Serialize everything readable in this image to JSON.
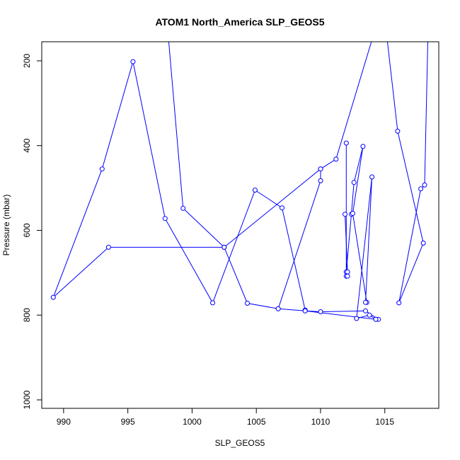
{
  "chart_data": {
    "type": "line",
    "title": "ATOM1 North_America SLP_GEOS5",
    "xlabel": "SLP_GEOS5",
    "ylabel": "Pressure (mbar)",
    "xlim": [
      988.3,
      1019.2
    ],
    "ylim": [
      1020,
      155
    ],
    "x_ticks": [
      990,
      995,
      1000,
      1005,
      1010,
      1015
    ],
    "y_ticks": [
      200,
      400,
      600,
      800,
      1000
    ],
    "colors": {
      "series": "#0000ff",
      "frame": "#000000"
    },
    "series": [
      {
        "points": [
          [
            998.0,
            90
          ],
          [
            999.3,
            548
          ],
          [
            1002.5,
            640
          ],
          [
            993.5,
            640
          ],
          [
            989.2,
            758
          ],
          [
            993.0,
            455
          ],
          [
            995.4,
            202
          ],
          [
            997.9,
            572
          ],
          [
            1001.6,
            771
          ],
          [
            1004.9,
            505
          ],
          [
            1007.0,
            547
          ],
          [
            1008.8,
            788
          ],
          [
            1008.8,
            790
          ],
          [
            1010.0,
            792
          ],
          [
            1013.5,
            790
          ],
          [
            1014.5,
            810
          ],
          [
            1014.3,
            810
          ],
          [
            1008.8,
            790
          ],
          [
            1006.7,
            785
          ],
          [
            1004.3,
            772
          ],
          [
            1002.5,
            640
          ],
          [
            1010.0,
            455
          ],
          [
            1011.2,
            432
          ],
          [
            1014.5,
            100
          ],
          [
            1015.0,
            100
          ],
          [
            1016.0,
            366
          ],
          [
            1018.0,
            630
          ],
          [
            1016.1,
            771
          ],
          [
            1017.8,
            502
          ],
          [
            1018.1,
            493
          ],
          [
            1018.4,
            80
          ]
        ]
      },
      {
        "points": [
          [
            1006.7,
            785
          ],
          [
            1010.0,
            483
          ],
          [
            1010.0,
            455
          ]
        ]
      },
      {
        "points": [
          [
            1012.0,
            394
          ],
          [
            1012.0,
            708
          ],
          [
            1012.0,
            698
          ],
          [
            1012.4,
            562
          ],
          [
            1012.6,
            487
          ],
          [
            1013.3,
            402
          ],
          [
            1012.5,
            560
          ],
          [
            1013.6,
            770
          ],
          [
            1013.5,
            770
          ],
          [
            1014.0,
            474
          ],
          [
            1012.8,
            808
          ],
          [
            1013.8,
            800
          ],
          [
            1014.3,
            810
          ]
        ]
      },
      {
        "points": [
          [
            1011.9,
            562
          ],
          [
            1012.1,
            698
          ],
          [
            1012.1,
            708
          ]
        ]
      }
    ]
  }
}
